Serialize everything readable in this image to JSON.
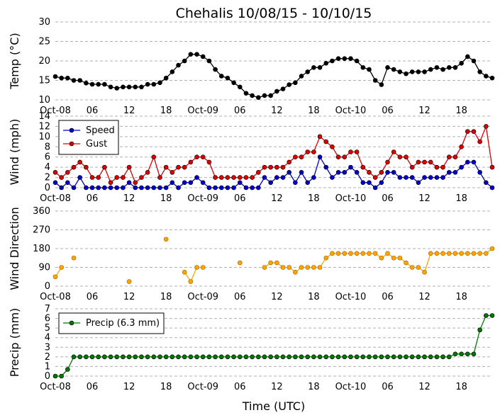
{
  "title": "Chehalis 10/08/15 - 10/10/15",
  "xlabel": "Time (UTC)",
  "x_tick_labels": [
    "Oct-08",
    "06",
    "12",
    "18",
    "Oct-09",
    "06",
    "12",
    "18",
    "Oct-10",
    "06",
    "12",
    "18"
  ],
  "colors": {
    "temp": "#000000",
    "speed": "#0000cc",
    "gust": "#dd0000",
    "direction": "#ffa500",
    "precip": "#007700",
    "grid": "#b0b0b0"
  },
  "chart_data": [
    {
      "type": "line",
      "ylabel": "Temp (°C)",
      "ylim": [
        10,
        30
      ],
      "yticks": [
        10,
        15,
        20,
        25,
        30
      ],
      "grid": true,
      "series": [
        {
          "values": [
            16,
            15.6,
            15.6,
            15,
            15,
            14.3,
            14,
            14,
            14,
            13.3,
            13,
            13.3,
            13.3,
            13.3,
            13.3,
            14,
            14,
            14.4,
            15.6,
            17.2,
            18.9,
            20,
            21.7,
            21.7,
            21.1,
            20,
            17.8,
            16.1,
            15.6,
            14.4,
            13.3,
            11.7,
            11.1,
            10.6,
            11.1,
            11.1,
            12.2,
            12.8,
            13.9,
            14.4,
            16.1,
            17.2,
            18.3,
            18.3,
            19.4,
            20,
            20.6,
            20.6,
            20.6,
            20,
            18.3,
            17.8,
            15,
            13.9,
            18.3,
            17.8,
            17.2,
            16.7,
            17.2,
            17.2,
            17.2,
            17.8,
            18.3,
            17.8,
            18.3,
            18.3,
            19.4,
            21.1,
            20,
            17.2,
            16.1,
            15.6
          ]
        }
      ]
    },
    {
      "type": "line",
      "ylabel": "Wind (mph)",
      "ylim": [
        0,
        14
      ],
      "yticks": [
        0,
        2,
        4,
        6,
        8,
        10,
        12,
        14
      ],
      "grid": true,
      "legend_position": "upper-left",
      "series": [
        {
          "name": "Speed",
          "values": [
            1,
            0,
            1,
            0,
            2,
            0,
            0,
            0,
            0,
            0,
            0,
            0,
            1,
            0,
            0,
            0,
            0,
            0,
            0,
            1,
            0,
            1,
            1,
            2,
            1,
            0,
            0,
            0,
            0,
            0,
            1,
            0,
            0,
            0,
            2,
            1,
            2,
            2,
            3,
            1,
            3,
            1,
            2,
            6,
            4,
            2,
            3,
            3,
            4,
            3,
            1,
            1,
            0,
            1,
            3,
            3,
            2,
            2,
            2,
            1,
            2,
            2,
            2,
            2,
            3,
            3,
            4,
            5,
            5,
            3,
            1,
            0
          ]
        },
        {
          "name": "Gust",
          "values": [
            3,
            2,
            3,
            4,
            5,
            4,
            2,
            2,
            4,
            1,
            2,
            2,
            4,
            1,
            2,
            3,
            6,
            2,
            4,
            3,
            4,
            4,
            5,
            6,
            6,
            5,
            2,
            2,
            2,
            2,
            2,
            2,
            2,
            3,
            4,
            4,
            4,
            4,
            5,
            6,
            6,
            7,
            7,
            10,
            9,
            8,
            6,
            6,
            7,
            7,
            4,
            3,
            2,
            3,
            5,
            7,
            6,
            6,
            4,
            5,
            5,
            5,
            4,
            4,
            6,
            6,
            8,
            11,
            11,
            9,
            12,
            4
          ]
        }
      ]
    },
    {
      "type": "scatter",
      "ylabel": "Wind Direction",
      "ylim": [
        0,
        360
      ],
      "yticks": [
        0,
        90,
        180,
        270,
        360
      ],
      "grid": true,
      "series": [
        {
          "values": [
            45,
            90,
            null,
            135,
            null,
            null,
            null,
            null,
            null,
            null,
            null,
            null,
            22,
            null,
            null,
            null,
            null,
            null,
            225,
            null,
            null,
            67,
            22,
            90,
            90,
            null,
            null,
            null,
            null,
            null,
            112,
            null,
            null,
            null,
            90,
            112,
            112,
            90,
            90,
            67,
            90,
            90,
            90,
            90,
            135,
            157,
            157,
            157,
            157,
            157,
            157,
            157,
            157,
            135,
            157,
            135,
            135,
            112,
            90,
            90,
            67,
            157,
            157,
            157,
            157,
            157,
            157,
            157,
            157,
            157,
            157,
            180
          ]
        }
      ]
    },
    {
      "type": "line",
      "ylabel": "Precip (mm)",
      "ylim": [
        0,
        7
      ],
      "yticks": [
        0,
        1,
        2,
        3,
        4,
        5,
        6,
        7
      ],
      "grid": true,
      "legend_position": "upper-left",
      "series": [
        {
          "name": "Precip (6.3 mm)",
          "values": [
            0,
            0,
            0.7,
            2,
            2,
            2,
            2,
            2,
            2,
            2,
            2,
            2,
            2,
            2,
            2,
            2,
            2,
            2,
            2,
            2,
            2,
            2,
            2,
            2,
            2,
            2,
            2,
            2,
            2,
            2,
            2,
            2,
            2,
            2,
            2,
            2,
            2,
            2,
            2,
            2,
            2,
            2,
            2,
            2,
            2,
            2,
            2,
            2,
            2,
            2,
            2,
            2,
            2,
            2,
            2,
            2,
            2,
            2,
            2,
            2,
            2,
            2,
            2,
            2,
            2,
            2.3,
            2.3,
            2.3,
            2.3,
            4.8,
            6.3,
            6.3
          ]
        }
      ]
    }
  ]
}
